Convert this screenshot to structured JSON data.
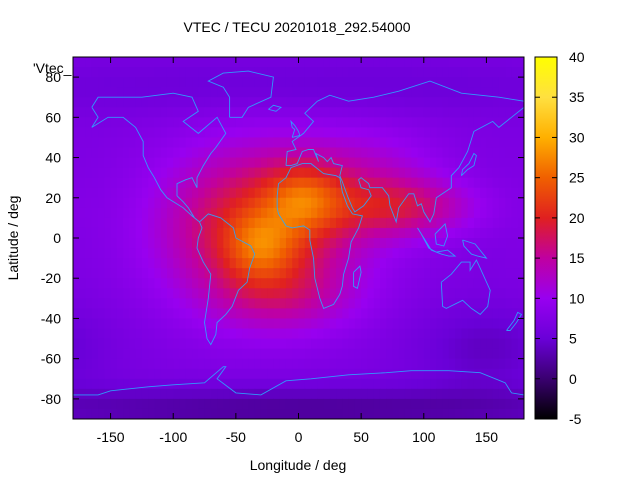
{
  "chart_data": {
    "type": "heatmap",
    "title": "VTEC / TECU 20201018_292.54000",
    "xlabel": "Longitude / deg",
    "ylabel": "Latitude / deg",
    "series_label": "'Vtec_",
    "xlim": [
      -180,
      180
    ],
    "ylim": [
      -90,
      90
    ],
    "x_ticks": [
      -150,
      -100,
      -50,
      0,
      50,
      100,
      150
    ],
    "y_ticks": [
      -80,
      -60,
      -40,
      -20,
      0,
      20,
      40,
      60,
      80
    ],
    "colorbar": {
      "range": [
        -5,
        40
      ],
      "ticks": [
        -5,
        0,
        5,
        10,
        15,
        20,
        25,
        30,
        35,
        40
      ],
      "colormap": [
        "#000000",
        "#3a0070",
        "#6a00d8",
        "#9800f0",
        "#c000a0",
        "#e02020",
        "#f06000",
        "#ffb000",
        "#ffe040",
        "#ffff00"
      ]
    },
    "tec_background": 7,
    "tec_features": [
      {
        "lon": -30,
        "lat": 5,
        "peak": 14,
        "sigma_lon": 55,
        "sigma_lat": 28
      },
      {
        "lon": -30,
        "lat": -5,
        "peak": 7,
        "sigma_lon": 20,
        "sigma_lat": 12
      },
      {
        "lon": 5,
        "lat": 20,
        "peak": 8,
        "sigma_lon": 22,
        "sigma_lat": 12
      },
      {
        "lon": -10,
        "lat": -30,
        "peak": 4,
        "sigma_lon": 40,
        "sigma_lat": 12
      },
      {
        "lon": 85,
        "lat": 15,
        "peak": 8,
        "sigma_lon": 40,
        "sigma_lat": 10
      },
      {
        "lon": 60,
        "lat": 30,
        "peak": 4,
        "sigma_lon": 40,
        "sigma_lat": 18
      },
      {
        "lon": 0,
        "lat": -85,
        "peak": -5,
        "sigma_lon": 200,
        "sigma_lat": 8
      },
      {
        "lon": 150,
        "lat": -55,
        "peak": -3,
        "sigma_lon": 40,
        "sigma_lat": 15
      },
      {
        "lon": 0,
        "lat": 75,
        "peak": -2,
        "sigma_lon": 200,
        "sigma_lat": 10
      }
    ]
  },
  "map_colors": {
    "coastline": "#2aa8ff",
    "axis": "#000000"
  }
}
